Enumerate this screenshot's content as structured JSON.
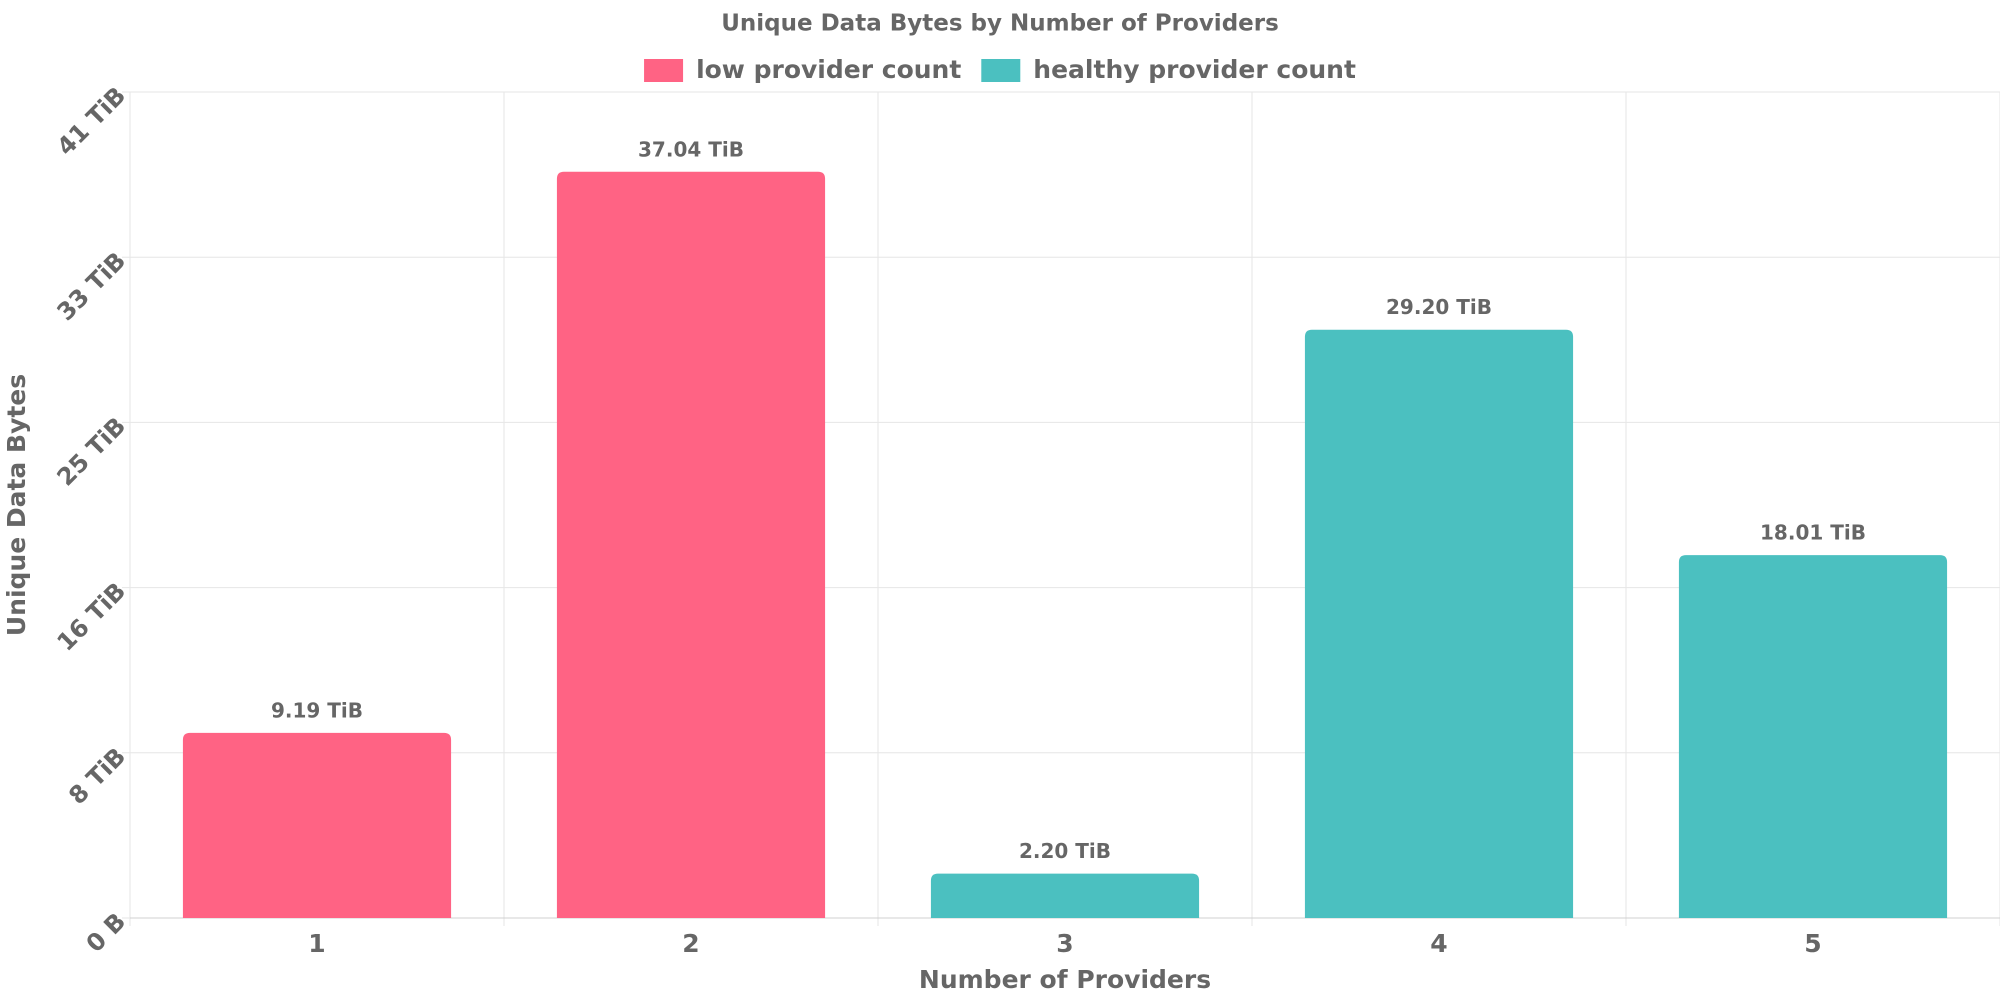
{
  "chart_data": {
    "type": "bar",
    "title": "Unique Data Bytes by Number of Providers",
    "x_label": "Number of Providers",
    "y_label": "Unique Data Bytes",
    "categories": [
      "1",
      "2",
      "3",
      "4",
      "5"
    ],
    "series": [
      {
        "name": "low provider count",
        "color": "#ff6384",
        "values": [
          9.19,
          37.04,
          null,
          null,
          null
        ],
        "value_labels": [
          "9.19 TiB",
          "37.04 TiB",
          null,
          null,
          null
        ]
      },
      {
        "name": "healthy provider count",
        "color": "#4bc0c0",
        "values": [
          null,
          null,
          2.2,
          29.2,
          18.01
        ],
        "value_labels": [
          null,
          null,
          "2.20 TiB",
          "29.20 TiB",
          "18.01 TiB"
        ]
      }
    ],
    "ylim": [
      0,
      41
    ],
    "yticks": [
      {
        "value": 0,
        "label": "0 B"
      },
      {
        "value": 8.2,
        "label": "8 TiB"
      },
      {
        "value": 16.4,
        "label": "16 TiB"
      },
      {
        "value": 24.6,
        "label": "25 TiB"
      },
      {
        "value": 32.8,
        "label": "33 TiB"
      },
      {
        "value": 41,
        "label": "41 TiB"
      }
    ],
    "grid": true,
    "legend": "top"
  }
}
